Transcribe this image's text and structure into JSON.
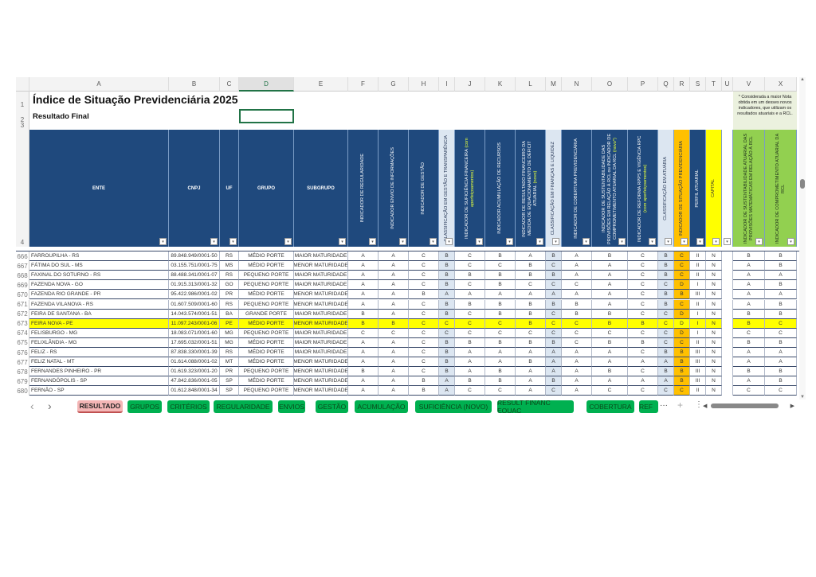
{
  "title": "Índice de Situação Previdenciária 2025",
  "subtitle": "Resultado Final",
  "note": "* Considerada a maior Nota obtida em um desses novos indicadores, que utilizam os resultados atuariais e a RCL.",
  "column_letters": [
    "A",
    "B",
    "C",
    "D",
    "E",
    "F",
    "G",
    "H",
    "I",
    "J",
    "K",
    "L",
    "M",
    "N",
    "O",
    "P",
    "Q",
    "R",
    "S",
    "T",
    "U",
    "V",
    "X"
  ],
  "row_labels": [
    "1",
    "2",
    "3",
    "4"
  ],
  "headers": [
    {
      "text": "ENTE"
    },
    {
      "text": "CNPJ"
    },
    {
      "text": "UF"
    },
    {
      "text": "GRUPO"
    },
    {
      "text": "SUBGRUPO"
    },
    {
      "text": "INDICADOR DE REGULARIDADE"
    },
    {
      "text": "INDICADOR ENVIO DE INFORMAÇÕES"
    },
    {
      "text": "INDICADOR DE GESTÃO"
    },
    {
      "text": "CLASSIFICAÇÃO EM GESTÃO E TRANSPARÊNCIA"
    },
    {
      "text": "INDICADOR DE SUFICIÊNCIA FINANCEIRA",
      "extra": "(com aperfeiçoamentos)"
    },
    {
      "text": "INDICADOR ACUMULAÇÃO DE RECURSOS"
    },
    {
      "text": "INDICADOR DE RESULTADO FINANCEIRO DA MEDIDA DE EQUACIONAMENTO DE DÉFICIT ATUARIAL",
      "extra": "(novo)"
    },
    {
      "text": "CLASSIFICAÇÃO EM FINANÇAS E LIQUIDEZ"
    },
    {
      "text": "INDICADOR DE COBERTURA PREVIDENCIÁRIA"
    },
    {
      "text": "INDICADOR DE SUSTENTABILIDADE DAS PROVISÕES EM RELAÇÃO À RCL ou INDICADOR DE COMPROMETIMENTO ATUARIAL DA RCL",
      "extra": "(novo*)"
    },
    {
      "text": "INDICADOR DE REFORMA RPPS E VIGÊNCIA RPC",
      "extra": "(com aperfeiçoamentos)"
    },
    {
      "text": "CLASSIFICAÇÃO EM ATUÁRIA"
    },
    {
      "text": "INDICADOR DE SITUAÇÃO PREVIDENCIÁRIA"
    },
    {
      "text": "PERFIL ATUARIAL"
    },
    {
      "text": "CAPITAL"
    },
    {
      "text": ""
    },
    {
      "text": "INDICADOR DE SUSTENTABILIDADE ATUARIAL DAS PROVISÕES MATEMÁTICAS EM RELAÇÃO À RCL"
    },
    {
      "text": "INDICADOR DE COMPROMETIMENTO ATUARIAL DA RCL"
    }
  ],
  "rows": [
    {
      "n": "666",
      "c": [
        "FARROUPILHA - RS",
        "89.848.949/0001-50",
        "RS",
        "MÉDIO PORTE",
        "MAIOR MATURIDADE",
        "A",
        "A",
        "C",
        "B",
        "C",
        "B",
        "A",
        "B",
        "A",
        "B",
        "C",
        "B",
        "C",
        "II",
        "N",
        "",
        "B",
        "B"
      ]
    },
    {
      "n": "667",
      "c": [
        "FÁTIMA DO SUL - MS",
        "03.155.751/0001-75",
        "MS",
        "MÉDIO PORTE",
        "MENOR MATURIDADE",
        "A",
        "A",
        "C",
        "B",
        "C",
        "C",
        "B",
        "C",
        "A",
        "A",
        "C",
        "B",
        "C",
        "II",
        "N",
        "",
        "A",
        "B"
      ]
    },
    {
      "n": "668",
      "c": [
        "FAXINAL DO SOTURNO - RS",
        "88.488.341/0001-07",
        "RS",
        "PEQUENO PORTE",
        "MAIOR MATURIDADE",
        "A",
        "A",
        "C",
        "B",
        "B",
        "B",
        "B",
        "B",
        "A",
        "A",
        "C",
        "B",
        "C",
        "II",
        "N",
        "",
        "A",
        "A"
      ]
    },
    {
      "n": "669",
      "c": [
        "FAZENDA NOVA - GO",
        "01.915.313/0001-32",
        "GO",
        "PEQUENO PORTE",
        "MAIOR MATURIDADE",
        "A",
        "A",
        "C",
        "B",
        "C",
        "B",
        "C",
        "C",
        "C",
        "A",
        "C",
        "C",
        "D",
        "I",
        "N",
        "",
        "A",
        "B"
      ]
    },
    {
      "n": "670",
      "c": [
        "FAZENDA RIO GRANDE - PR",
        "95.422.986/0001-02",
        "PR",
        "MÉDIO PORTE",
        "MENOR MATURIDADE",
        "A",
        "A",
        "B",
        "A",
        "A",
        "A",
        "A",
        "A",
        "A",
        "A",
        "C",
        "B",
        "B",
        "III",
        "N",
        "",
        "A",
        "A"
      ]
    },
    {
      "n": "671",
      "c": [
        "FAZENDA VILANOVA - RS",
        "01.607.509/0001-60",
        "RS",
        "PEQUENO PORTE",
        "MENOR MATURIDADE",
        "A",
        "A",
        "C",
        "B",
        "B",
        "B",
        "B",
        "B",
        "B",
        "A",
        "C",
        "B",
        "C",
        "II",
        "N",
        "",
        "A",
        "B"
      ]
    },
    {
      "n": "672",
      "c": [
        "FEIRA DE SANTANA - BA",
        "14.043.574/0001-51",
        "BA",
        "GRANDE PORTE",
        "MAIOR MATURIDADE",
        "B",
        "A",
        "C",
        "B",
        "C",
        "B",
        "B",
        "C",
        "B",
        "B",
        "C",
        "C",
        "D",
        "I",
        "N",
        "",
        "B",
        "B"
      ]
    },
    {
      "n": "673",
      "hl": true,
      "c": [
        "FEIRA NOVA - PE",
        "11.097.243/0001-06",
        "PE",
        "MÉDIO PORTE",
        "MENOR MATURIDADE",
        "B",
        "B",
        "C",
        "C",
        "C",
        "C",
        "B",
        "C",
        "C",
        "B",
        "B",
        "C",
        "D",
        "I",
        "N",
        "",
        "B",
        "C"
      ]
    },
    {
      "n": "674",
      "c": [
        "FELISBURGO - MG",
        "18.083.071/0001-60",
        "MG",
        "PEQUENO PORTE",
        "MAIOR MATURIDADE",
        "C",
        "C",
        "C",
        "C",
        "C",
        "C",
        "C",
        "C",
        "C",
        "C",
        "C",
        "C",
        "D",
        "I",
        "N",
        "",
        "C",
        "C"
      ]
    },
    {
      "n": "675",
      "c": [
        "FELIXLÂNDIA - MG",
        "17.695.032/0001-51",
        "MG",
        "MÉDIO PORTE",
        "MAIOR MATURIDADE",
        "A",
        "A",
        "C",
        "B",
        "B",
        "B",
        "B",
        "B",
        "C",
        "B",
        "B",
        "C",
        "C",
        "II",
        "N",
        "",
        "B",
        "B"
      ]
    },
    {
      "n": "676",
      "c": [
        "FELIZ - RS",
        "87.838.330/0001-39",
        "RS",
        "MÉDIO PORTE",
        "MAIOR MATURIDADE",
        "A",
        "A",
        "C",
        "B",
        "A",
        "A",
        "A",
        "A",
        "A",
        "A",
        "C",
        "B",
        "B",
        "III",
        "N",
        "",
        "A",
        "A"
      ]
    },
    {
      "n": "677",
      "c": [
        "FELIZ NATAL - MT",
        "01.614.088/0001-02",
        "MT",
        "MÉDIO PORTE",
        "MENOR MATURIDADE",
        "A",
        "A",
        "C",
        "B",
        "A",
        "A",
        "B",
        "A",
        "A",
        "A",
        "A",
        "A",
        "B",
        "III",
        "N",
        "",
        "A",
        "A"
      ]
    },
    {
      "n": "678",
      "c": [
        "FERNANDES PINHEIRO - PR",
        "01.619.323/0001-20",
        "PR",
        "PEQUENO PORTE",
        "MENOR MATURIDADE",
        "B",
        "A",
        "C",
        "B",
        "A",
        "B",
        "A",
        "A",
        "A",
        "B",
        "C",
        "B",
        "B",
        "III",
        "N",
        "",
        "B",
        "B"
      ]
    },
    {
      "n": "679",
      "c": [
        "FERNANDÓPOLIS - SP",
        "47.842.836/0001-05",
        "SP",
        "MÉDIO PORTE",
        "MENOR MATURIDADE",
        "A",
        "A",
        "B",
        "A",
        "B",
        "B",
        "A",
        "B",
        "A",
        "A",
        "A",
        "A",
        "B",
        "III",
        "N",
        "",
        "A",
        "B"
      ]
    },
    {
      "n": "680",
      "c": [
        "FERNÃO - SP",
        "01.612.848/0001-34",
        "SP",
        "PEQUENO PORTE",
        "MENOR MATURIDADE",
        "A",
        "A",
        "B",
        "A",
        "C",
        "C",
        "A",
        "C",
        "A",
        "C",
        "C",
        "C",
        "C",
        "II",
        "N",
        "",
        "C",
        "C"
      ]
    }
  ],
  "tabs": [
    "RESULTADO",
    "GRUPOS",
    "CRITÉRIOS",
    "REGULARIDADE",
    "ENVIOS",
    "GESTÃO",
    "ACUMULAÇÃO",
    "SUFICIÊNCIA (NOVO)",
    "RESULT FINANC EQUAC",
    "COBERTURA",
    "REF"
  ],
  "tab_controls": {
    "prev": "‹",
    "next": "›",
    "more": "···",
    "add": "+",
    "options": "⋮"
  },
  "colors": {
    "header_blue": "#1f497d",
    "class_blue": "#dce6f1",
    "orange": "#ffc000",
    "yellow": "#ffff00",
    "green": "#92d050",
    "tab_green": "#00b050"
  }
}
